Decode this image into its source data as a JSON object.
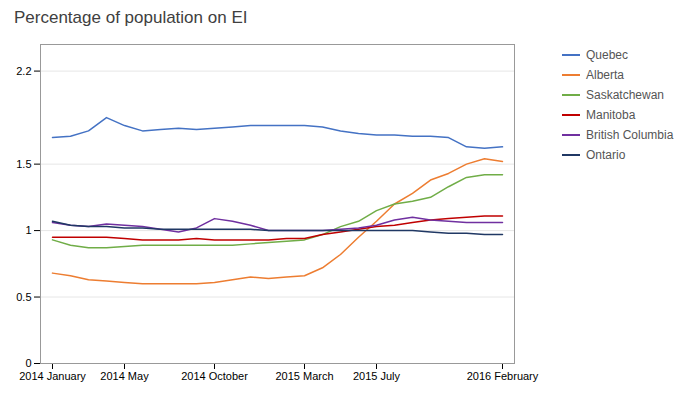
{
  "chart_data": {
    "type": "line",
    "title": "Percentage of population on EI",
    "categories": [
      "2014 January",
      null,
      null,
      null,
      "2014 May",
      null,
      null,
      null,
      null,
      "2014 October",
      null,
      null,
      null,
      null,
      "2015 March",
      null,
      null,
      null,
      "2015 July",
      null,
      null,
      null,
      null,
      null,
      null,
      "2016 February"
    ],
    "series": [
      {
        "name": "Quebec",
        "color": "#4472C4",
        "values": [
          1.7,
          1.71,
          1.75,
          1.85,
          1.79,
          1.75,
          1.76,
          1.77,
          1.76,
          1.77,
          1.78,
          1.79,
          1.79,
          1.79,
          1.79,
          1.78,
          1.75,
          1.73,
          1.72,
          1.72,
          1.71,
          1.71,
          1.7,
          1.63,
          1.62,
          1.63
        ]
      },
      {
        "name": "Alberta",
        "color": "#ED7D31",
        "values": [
          0.68,
          0.66,
          0.63,
          0.62,
          0.61,
          0.6,
          0.6,
          0.6,
          0.6,
          0.61,
          0.63,
          0.65,
          0.64,
          0.65,
          0.66,
          0.72,
          0.82,
          0.95,
          1.07,
          1.2,
          1.28,
          1.38,
          1.43,
          1.5,
          1.54,
          1.52
        ]
      },
      {
        "name": "Saskatchewan",
        "color": "#70AD47",
        "values": [
          0.93,
          0.89,
          0.87,
          0.87,
          0.88,
          0.89,
          0.89,
          0.89,
          0.89,
          0.89,
          0.89,
          0.9,
          0.91,
          0.92,
          0.93,
          0.97,
          1.03,
          1.07,
          1.15,
          1.2,
          1.22,
          1.25,
          1.33,
          1.4,
          1.42,
          1.42
        ]
      },
      {
        "name": "Manitoba",
        "color": "#C00000",
        "values": [
          0.95,
          0.95,
          0.95,
          0.95,
          0.94,
          0.93,
          0.93,
          0.93,
          0.94,
          0.93,
          0.93,
          0.93,
          0.93,
          0.94,
          0.94,
          0.97,
          0.99,
          1.01,
          1.03,
          1.04,
          1.06,
          1.08,
          1.09,
          1.1,
          1.11,
          1.11
        ]
      },
      {
        "name": "British Columbia",
        "color": "#7030A0",
        "values": [
          1.06,
          1.04,
          1.03,
          1.05,
          1.04,
          1.03,
          1.01,
          0.99,
          1.02,
          1.09,
          1.07,
          1.04,
          1.0,
          1.0,
          1.0,
          1.0,
          1.01,
          1.02,
          1.04,
          1.08,
          1.1,
          1.08,
          1.07,
          1.06,
          1.06,
          1.06
        ]
      },
      {
        "name": "Ontario",
        "color": "#203864",
        "values": [
          1.07,
          1.04,
          1.03,
          1.03,
          1.02,
          1.02,
          1.01,
          1.01,
          1.01,
          1.01,
          1.01,
          1.01,
          1.0,
          1.0,
          1.0,
          1.0,
          1.0,
          1.0,
          1.0,
          1.0,
          1.0,
          0.99,
          0.98,
          0.98,
          0.97,
          0.97
        ]
      }
    ],
    "ylim": [
      0,
      2.4
    ],
    "yticks": [
      0,
      0.5,
      1.0,
      1.5,
      2.2
    ],
    "grid": true,
    "legend": "right"
  }
}
